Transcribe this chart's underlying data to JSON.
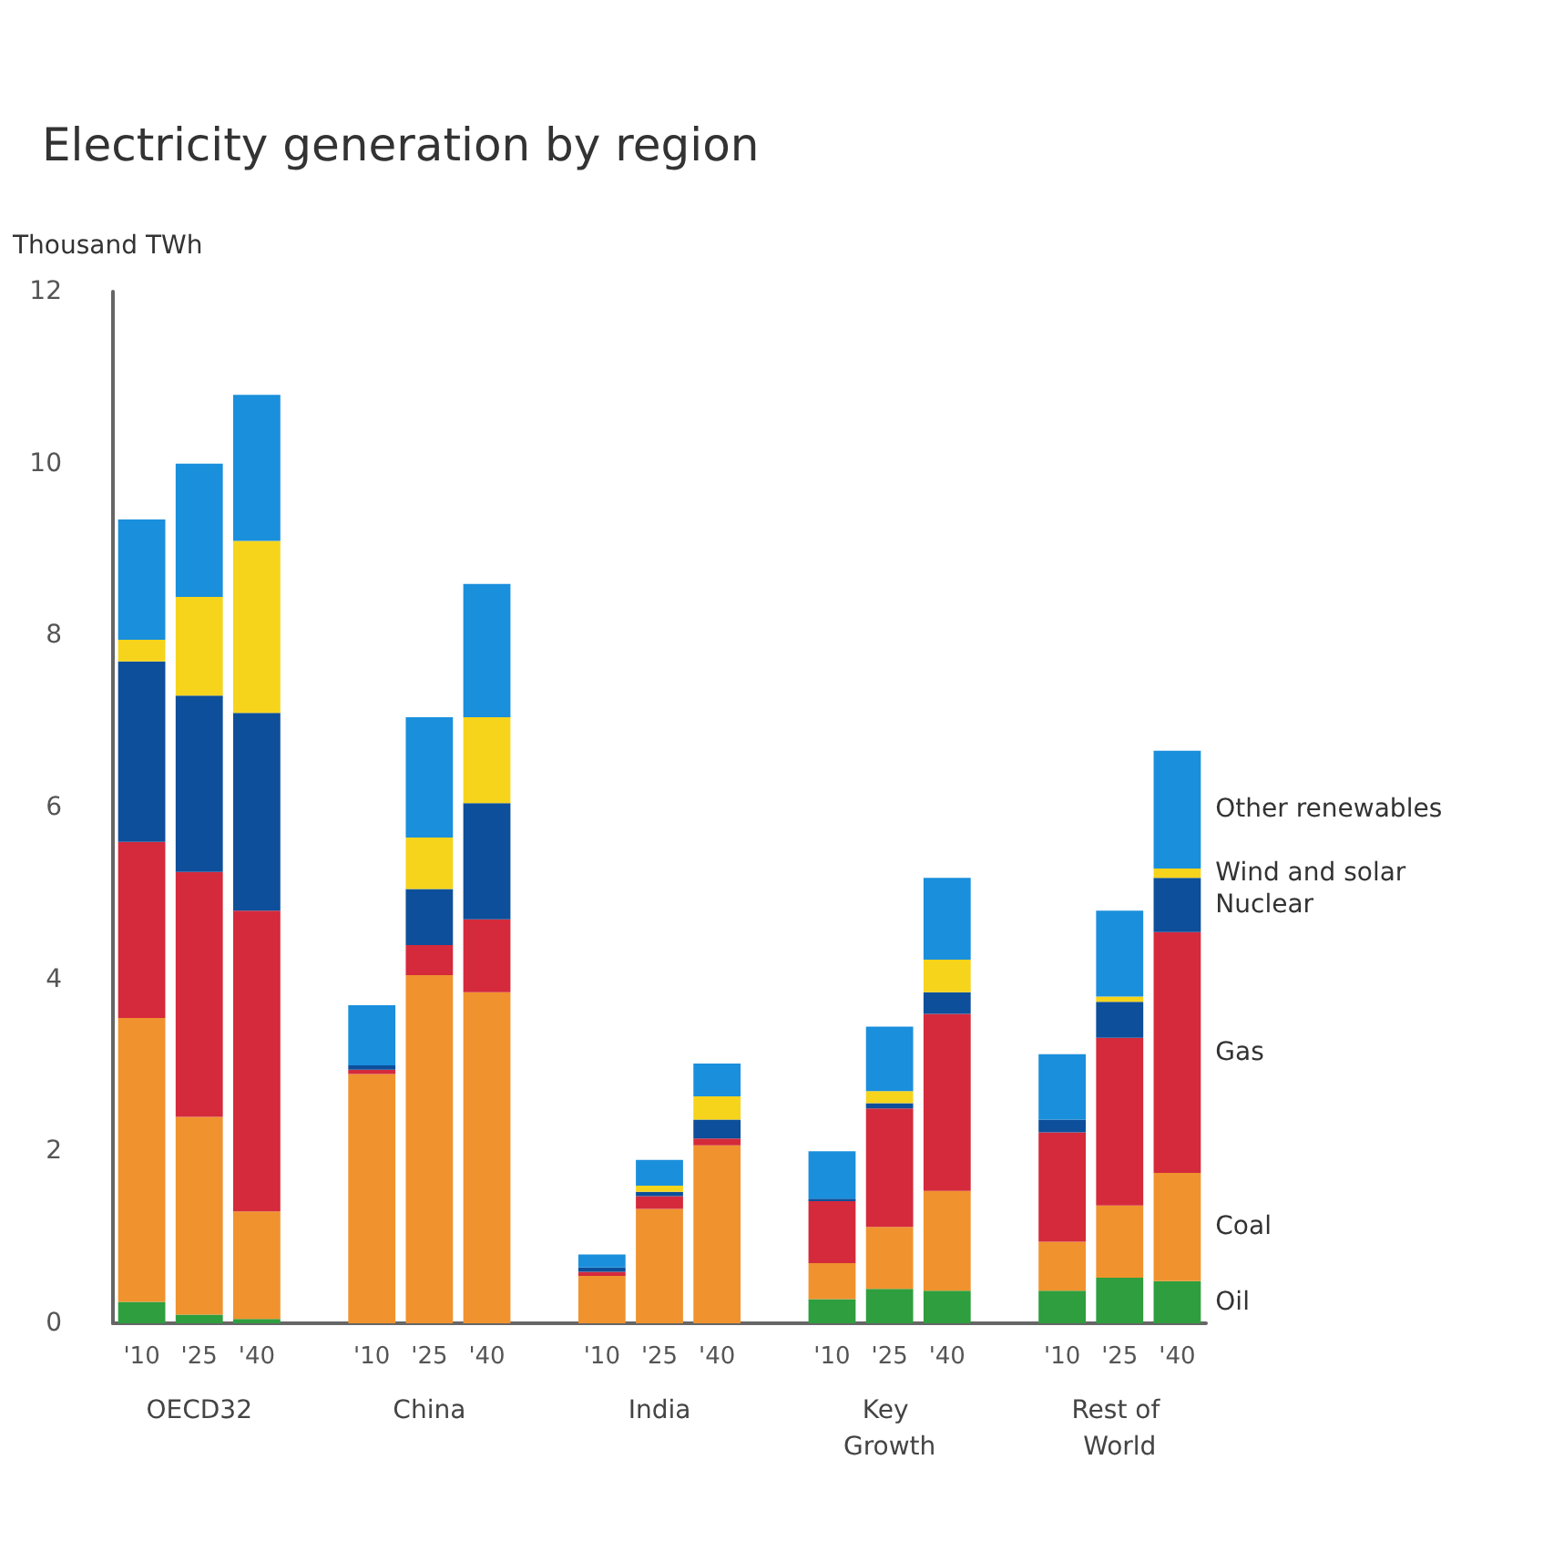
{
  "chart_data": {
    "type": "bar",
    "stacked": true,
    "title": "Electricity generation by region",
    "ylabel": "Thousand TWh",
    "categories": [
      "'10",
      "'25",
      "'40",
      null,
      "'10",
      "'25",
      "'40",
      null,
      "'10",
      "'25",
      "'40",
      null,
      "'10",
      "'25",
      "'40",
      null,
      "'10",
      "'25",
      "'40"
    ],
    "annotations": [
      "OECD32",
      "China",
      "India",
      "Key Growth",
      "Rest of World"
    ],
    "series": [
      {
        "name": "Oil",
        "color": "#2e9e3e",
        "values": [
          0.25,
          0.1,
          0.05,
          null,
          0,
          0,
          0,
          null,
          0,
          0,
          0,
          null,
          0.28,
          0.4,
          0.38,
          null,
          0.38,
          0.53,
          0.49
        ]
      },
      {
        "name": "Coal",
        "color": "#f0922e",
        "values": [
          3.3,
          2.3,
          1.25,
          null,
          2.9,
          4.05,
          3.85,
          null,
          0.55,
          1.33,
          2.07,
          null,
          0.42,
          0.72,
          1.16,
          null,
          0.57,
          0.84,
          1.26
        ]
      },
      {
        "name": "Gas",
        "color": "#d42a3c",
        "values": [
          2.05,
          2.85,
          3.5,
          null,
          0.05,
          0.35,
          0.85,
          null,
          0.05,
          0.15,
          0.08,
          null,
          0.72,
          1.38,
          2.06,
          null,
          1.27,
          1.95,
          2.8
        ]
      },
      {
        "name": "Nuclear",
        "color": "#0d4f9a",
        "values": [
          2.1,
          2.05,
          2.3,
          null,
          0.05,
          0.65,
          1.35,
          null,
          0.05,
          0.05,
          0.22,
          null,
          0.03,
          0.06,
          0.25,
          null,
          0.15,
          0.42,
          0.63
        ]
      },
      {
        "name": "Wind and solar",
        "color": "#f6d41c",
        "values": [
          0.25,
          1.15,
          2.0,
          null,
          0,
          0.6,
          1.0,
          null,
          0,
          0.07,
          0.27,
          null,
          0,
          0.14,
          0.38,
          null,
          0,
          0.06,
          0.11
        ]
      },
      {
        "name": "Other renewables",
        "color": "#1a8fdc",
        "values": [
          1.4,
          1.55,
          1.7,
          null,
          0.7,
          1.4,
          1.55,
          null,
          0.15,
          0.3,
          0.38,
          null,
          0.55,
          0.75,
          0.95,
          null,
          0.76,
          1.0,
          1.37
        ]
      }
    ],
    "ylim": [
      0,
      12
    ],
    "yticks": [
      0,
      2,
      4,
      6,
      8,
      10,
      12
    ],
    "grid": false,
    "legend": false
  }
}
